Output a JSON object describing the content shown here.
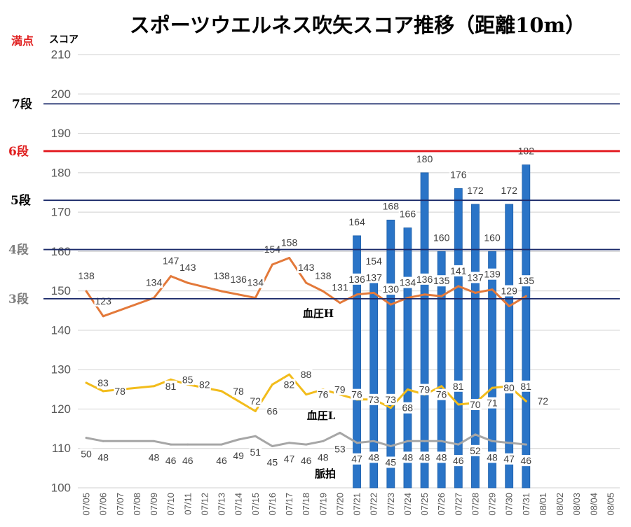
{
  "chart_data": {
    "type": "bar",
    "title": "スポーツウエルネス吹矢スコア推移（距離10m）",
    "ylabel": "スコア",
    "max_label": "満点",
    "ylim": [
      100,
      210
    ],
    "yticks": [
      100,
      110,
      120,
      130,
      140,
      150,
      160,
      170,
      180,
      190,
      200,
      210
    ],
    "y2lim": [
      20,
      280
    ],
    "grid": true,
    "categories": [
      "07/05",
      "07/06",
      "07/07",
      "07/08",
      "07/09",
      "07/10",
      "07/11",
      "07/12",
      "07/13",
      "07/14",
      "07/15",
      "07/16",
      "07/17",
      "07/18",
      "07/19",
      "07/20",
      "07/21",
      "07/22",
      "07/23",
      "07/24",
      "07/25",
      "07/26",
      "07/27",
      "07/28",
      "07/29",
      "07/30",
      "07/31",
      "08/01",
      "08/02",
      "08/03",
      "08/04",
      "08/05"
    ],
    "series": [
      {
        "type": "bar",
        "color": "#2a74c7",
        "values": [
          null,
          null,
          null,
          null,
          null,
          null,
          null,
          null,
          null,
          null,
          null,
          null,
          null,
          null,
          null,
          null,
          164,
          154,
          168,
          166,
          180,
          160,
          176,
          172,
          160,
          172,
          182,
          null,
          null,
          null,
          null,
          null
        ]
      },
      {
        "type": "line",
        "name": "血圧H",
        "color": "#e3793a",
        "values": [
          138,
          123,
          null,
          null,
          134,
          147,
          143,
          null,
          138,
          136,
          134,
          154,
          158,
          143,
          138,
          131,
          136,
          137,
          130,
          134,
          136,
          135,
          141,
          137,
          139,
          129,
          135,
          null,
          null,
          null,
          null,
          null
        ]
      },
      {
        "type": "line",
        "name": "血圧L",
        "color": "#f2bc1b",
        "values": [
          83,
          78,
          null,
          null,
          81,
          85,
          82,
          null,
          78,
          72,
          66,
          82,
          88,
          76,
          79,
          76,
          73,
          73,
          68,
          79,
          76,
          81,
          70,
          71,
          80,
          81,
          72,
          null,
          null,
          null,
          null,
          null
        ]
      },
      {
        "type": "line",
        "name": "脈拍",
        "color": "#a6a6a6",
        "values": [
          50,
          48,
          null,
          null,
          48,
          46,
          46,
          null,
          46,
          49,
          51,
          45,
          47,
          46,
          48,
          53,
          47,
          48,
          45,
          48,
          48,
          48,
          46,
          52,
          48,
          47,
          46,
          null,
          null,
          null,
          null,
          null
        ]
      }
    ],
    "reference_lines": [
      {
        "label": "7段",
        "value": 197.5,
        "color": "#1b2a6a",
        "label_color": "#000000"
      },
      {
        "label": "6段",
        "value": 185.5,
        "color": "#e31e24",
        "label_color": "#e02020"
      },
      {
        "label": "5段",
        "value": 173,
        "color": "#1b2a6a",
        "label_color": "#000000"
      },
      {
        "label": "4段",
        "value": 160.5,
        "color": "#1b2a6a",
        "label_color": "#7f7f7f"
      },
      {
        "label": "3段",
        "value": 148,
        "color": "#1b2a6a",
        "label_color": "#7f7f7f"
      }
    ]
  }
}
